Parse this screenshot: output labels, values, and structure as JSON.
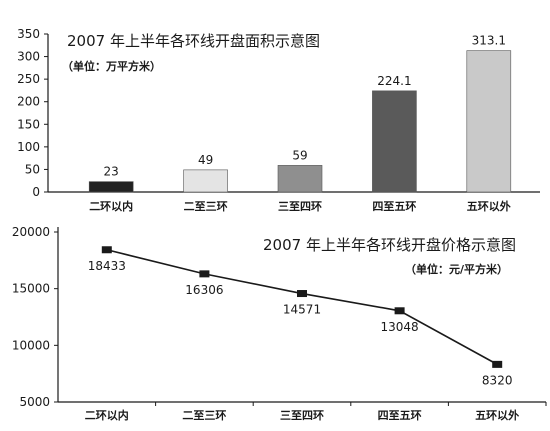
{
  "chart_data": [
    {
      "type": "bar",
      "title": "2007 年上半年各环线开盘面积示意图",
      "unit": "（单位：万平方米）",
      "categories": [
        "二环以内",
        "二至三环",
        "三至四环",
        "四至五环",
        "五环以外"
      ],
      "values": [
        23,
        49,
        59,
        224.1,
        313.1
      ],
      "value_labels": [
        "23",
        "49",
        "59",
        "224.1",
        "313.1"
      ],
      "bar_colors": [
        "#222222",
        "#e4e4e4",
        "#8f8f8f",
        "#5a5a5a",
        "#c9c9c9"
      ],
      "yticks": [
        "0",
        "50",
        "100",
        "150",
        "200",
        "250",
        "300",
        "350"
      ],
      "ylim": [
        0,
        350
      ],
      "grid": false
    },
    {
      "type": "line",
      "title": "2007 年上半年各环线开盘价格示意图",
      "unit": "（单位：元/平方米）",
      "categories": [
        "二环以内",
        "二至三环",
        "三至四环",
        "四至五环",
        "五环以外"
      ],
      "values": [
        18433,
        16306,
        14571,
        13048,
        8320
      ],
      "value_labels": [
        "18433",
        "16306",
        "14571",
        "13048",
        "8320"
      ],
      "yticks": [
        "5000",
        "10000",
        "15000",
        "20000"
      ],
      "ylim": [
        5000,
        20000
      ],
      "line_color": "#1a1a1a",
      "grid": false
    }
  ]
}
